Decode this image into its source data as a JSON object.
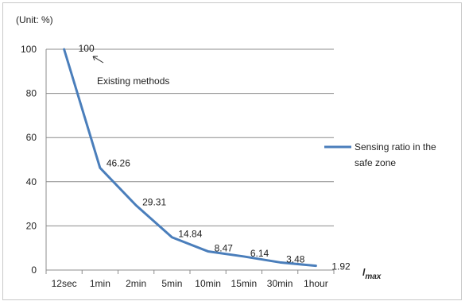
{
  "chart_data": {
    "type": "line",
    "unit_label": "(Unit: %)",
    "xlabel_base": "l",
    "xlabel_sub": "max",
    "categories": [
      "12sec",
      "1min",
      "2min",
      "5min",
      "10min",
      "15min",
      "30min",
      "1hour"
    ],
    "series": [
      {
        "name": "Sensing ratio in the safe zone",
        "legend_lines": [
          "Sensing ratio in the",
          "safe zone"
        ],
        "values": [
          100,
          46.26,
          29.31,
          14.84,
          8.47,
          6.14,
          3.48,
          1.92
        ],
        "labels": [
          "100",
          "46.26",
          "29.31",
          "14.84",
          "8.47",
          "6.14",
          "3.48",
          "1.92"
        ],
        "color": "#4a7ebb"
      }
    ],
    "yticks": [
      "0",
      "20",
      "40",
      "60",
      "80",
      "100"
    ],
    "ylim": [
      0,
      100
    ],
    "grid": true,
    "legend_position": "right",
    "annotation": "Existing methods"
  }
}
